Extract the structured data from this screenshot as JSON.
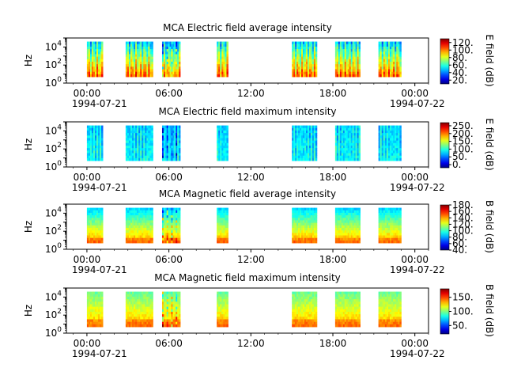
{
  "chart_data": [
    {
      "type": "heatmap",
      "title": "MCA  Electric field average intensity",
      "ylabel": "Hz",
      "ylim": [
        1,
        100000
      ],
      "yscale": "log",
      "y_ticks": [
        "10^0",
        "10^2",
        "10^4"
      ],
      "xlim": [
        "1994-07-20 22:30",
        "1994-07-22 01:00"
      ],
      "x_ticks": [
        "00:00",
        "06:00",
        "12:00",
        "18:00",
        "00:00"
      ],
      "x_date_labels": [
        "1994-07-21",
        "1994-07-22"
      ],
      "data_intervals": [
        [
          "00:00",
          "01:10"
        ],
        [
          "02:50",
          "04:50"
        ],
        [
          "05:30",
          "06:50"
        ],
        [
          "09:30",
          "10:20"
        ],
        [
          "15:00",
          "16:50"
        ],
        [
          "18:10",
          "20:00"
        ],
        [
          "21:20",
          "23:00"
        ]
      ],
      "colorbar": {
        "label": "E field (dB)",
        "min": 10,
        "max": 130,
        "ticks": [
          "20.",
          "40.",
          "60.",
          "80.",
          "100.",
          "120."
        ]
      }
    },
    {
      "type": "heatmap",
      "title": "MCA  Electric field maximum intensity",
      "ylabel": "Hz",
      "ylim": [
        1,
        100000
      ],
      "yscale": "log",
      "y_ticks": [
        "10^0",
        "10^2",
        "10^4"
      ],
      "xlim": [
        "1994-07-20 22:30",
        "1994-07-22 01:00"
      ],
      "x_ticks": [
        "00:00",
        "06:00",
        "12:00",
        "18:00",
        "00:00"
      ],
      "x_date_labels": [
        "1994-07-21",
        "1994-07-22"
      ],
      "data_intervals": [
        [
          "00:00",
          "01:10"
        ],
        [
          "02:50",
          "04:50"
        ],
        [
          "05:30",
          "06:50"
        ],
        [
          "09:30",
          "10:20"
        ],
        [
          "15:00",
          "16:50"
        ],
        [
          "18:10",
          "20:00"
        ],
        [
          "21:20",
          "23:00"
        ]
      ],
      "colorbar": {
        "label": "E field (dB)",
        "min": -20,
        "max": 270,
        "ticks": [
          "0.",
          "50.",
          "100.",
          "150.",
          "200.",
          "250."
        ]
      }
    },
    {
      "type": "heatmap",
      "title": "MCA  Magnetic field average intensity",
      "ylabel": "Hz",
      "ylim": [
        1,
        100000
      ],
      "yscale": "log",
      "y_ticks": [
        "10^0",
        "10^2",
        "10^4"
      ],
      "xlim": [
        "1994-07-20 22:30",
        "1994-07-22 01:00"
      ],
      "x_ticks": [
        "00:00",
        "06:00",
        "12:00",
        "18:00",
        "00:00"
      ],
      "x_date_labels": [
        "1994-07-21",
        "1994-07-22"
      ],
      "data_intervals": [
        [
          "00:00",
          "01:10"
        ],
        [
          "02:50",
          "04:50"
        ],
        [
          "05:30",
          "06:50"
        ],
        [
          "09:30",
          "10:20"
        ],
        [
          "15:00",
          "16:50"
        ],
        [
          "18:10",
          "20:00"
        ],
        [
          "21:20",
          "23:00"
        ]
      ],
      "colorbar": {
        "label": "B field (dB)",
        "min": 40,
        "max": 180,
        "ticks": [
          "40.",
          "60.",
          "80.",
          "100.",
          "120.",
          "140.",
          "160.",
          "180."
        ]
      }
    },
    {
      "type": "heatmap",
      "title": "MCA  Magnetic field maximum intensity",
      "ylabel": "Hz",
      "ylim": [
        1,
        100000
      ],
      "yscale": "log",
      "y_ticks": [
        "10^0",
        "10^2",
        "10^4"
      ],
      "xlim": [
        "1994-07-20 22:30",
        "1994-07-22 01:00"
      ],
      "x_ticks": [
        "00:00",
        "06:00",
        "12:00",
        "18:00",
        "00:00"
      ],
      "x_date_labels": [
        "1994-07-21",
        "1994-07-22"
      ],
      "data_intervals": [
        [
          "00:00",
          "01:10"
        ],
        [
          "02:50",
          "04:50"
        ],
        [
          "05:30",
          "06:50"
        ],
        [
          "09:30",
          "10:20"
        ],
        [
          "15:00",
          "16:50"
        ],
        [
          "18:10",
          "20:00"
        ],
        [
          "21:20",
          "23:00"
        ]
      ],
      "colorbar": {
        "label": "B field (dB)",
        "min": 20,
        "max": 180,
        "ticks": [
          "50.",
          "100.",
          "150."
        ]
      }
    }
  ]
}
